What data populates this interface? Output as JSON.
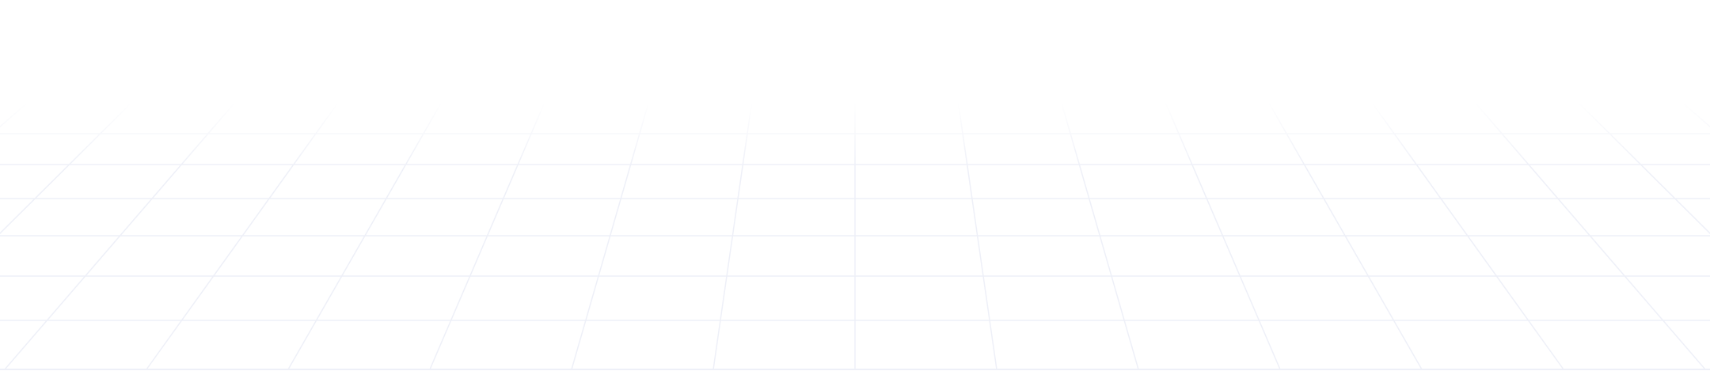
{
  "background": {
    "type": "perspective-grid",
    "line_color": "#eef0f8",
    "background_color": "#ffffff"
  }
}
